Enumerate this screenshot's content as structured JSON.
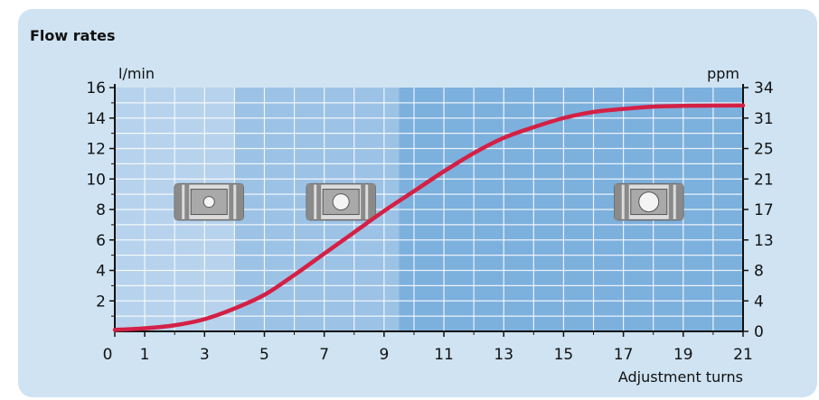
{
  "title": "Flow rates",
  "chart_data": {
    "type": "line",
    "title": "Flow rates",
    "xlabel": "Adjustment turns",
    "ylabel": "l/min",
    "ylabel_right": "ppm",
    "xlim": [
      0,
      21
    ],
    "ylim": [
      0,
      16
    ],
    "xticks": [
      "0",
      "1",
      "3",
      "5",
      "7",
      "9",
      "11",
      "13",
      "15",
      "17",
      "19",
      "21"
    ],
    "yticks": [
      "16",
      "14",
      "12",
      "10",
      "8",
      "6",
      "4",
      "2"
    ],
    "yticks_right": [
      "34",
      "31",
      "25",
      "21",
      "17",
      "13",
      "8",
      "4",
      "0"
    ],
    "grid": true,
    "line_color": "#d42045",
    "series": [
      {
        "x": [
          0,
          1,
          2,
          3,
          4,
          5,
          6,
          7,
          8,
          9,
          10,
          11,
          12,
          13,
          14,
          15,
          16,
          17,
          18,
          19,
          20,
          21
        ],
        "y": [
          0.1,
          0.2,
          0.4,
          0.8,
          1.5,
          2.4,
          3.7,
          5.1,
          6.5,
          7.9,
          9.2,
          10.5,
          11.7,
          12.7,
          13.4,
          14.0,
          14.4,
          14.6,
          14.75,
          14.8,
          14.82,
          14.83
        ]
      }
    ],
    "bands": [
      {
        "from": 0,
        "to": 4,
        "color": "#b7d2ec"
      },
      {
        "from": 4,
        "to": 9.5,
        "color": "#9cc2e6"
      },
      {
        "from": 9.5,
        "to": 21,
        "color": "#7cb0dd"
      }
    ],
    "valve_icons": [
      {
        "name": "valve-closed-icon",
        "state": "closed"
      },
      {
        "name": "valve-partly-open-icon",
        "state": "partly-open"
      },
      {
        "name": "valve-open-icon",
        "state": "open"
      }
    ]
  }
}
